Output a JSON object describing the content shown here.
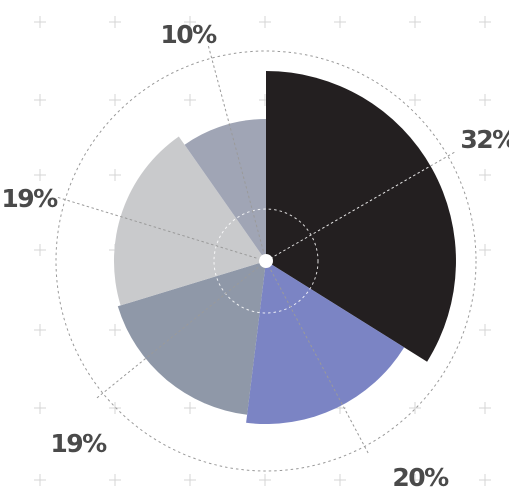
{
  "chart_data": {
    "type": "pie",
    "variant": "polar-area",
    "slices": [
      {
        "label": "32%",
        "value": 32,
        "color": "#231f20"
      },
      {
        "label": "20%",
        "value": 20,
        "color": "#7b84c4"
      },
      {
        "label": "19%",
        "value": 19,
        "color": "#8f98a8"
      },
      {
        "label": "19%",
        "value": 19,
        "color": "#c9cacc"
      },
      {
        "label": "10%",
        "value": 10,
        "color": "#a0a5b5"
      }
    ],
    "background": "grid of plus markers",
    "title": "",
    "legend": "none"
  }
}
